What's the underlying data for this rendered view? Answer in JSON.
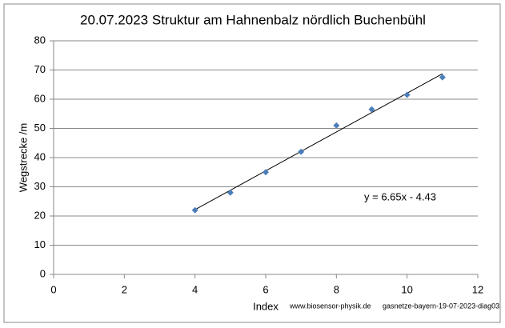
{
  "chart_data": {
    "type": "scatter",
    "title": "20.07.2023 Struktur am Hahnenbalz nördlich Buchenbühl",
    "x_label": "Index",
    "y_label": "Wegstrecke /m",
    "footer": [
      "www.biosensor-physik.de",
      "gasnetze-bayern-19-07-2023-diag03"
    ],
    "x": [
      4,
      5,
      6,
      7,
      8,
      9,
      10,
      11
    ],
    "values": [
      22,
      28,
      35,
      42,
      51,
      56.5,
      61.5,
      67.5
    ],
    "color": "#4a7ebb",
    "trendline": {
      "slope": 6.65,
      "intercept": -4.43,
      "label": "y = 6.65x - 4.43"
    },
    "xlim": [
      0,
      12
    ],
    "xticks": [
      0,
      2,
      4,
      6,
      8,
      10,
      12
    ],
    "ylim": [
      0,
      80
    ],
    "yticks": [
      0,
      10,
      20,
      30,
      40,
      50,
      60,
      70,
      80
    ],
    "grid": true
  }
}
